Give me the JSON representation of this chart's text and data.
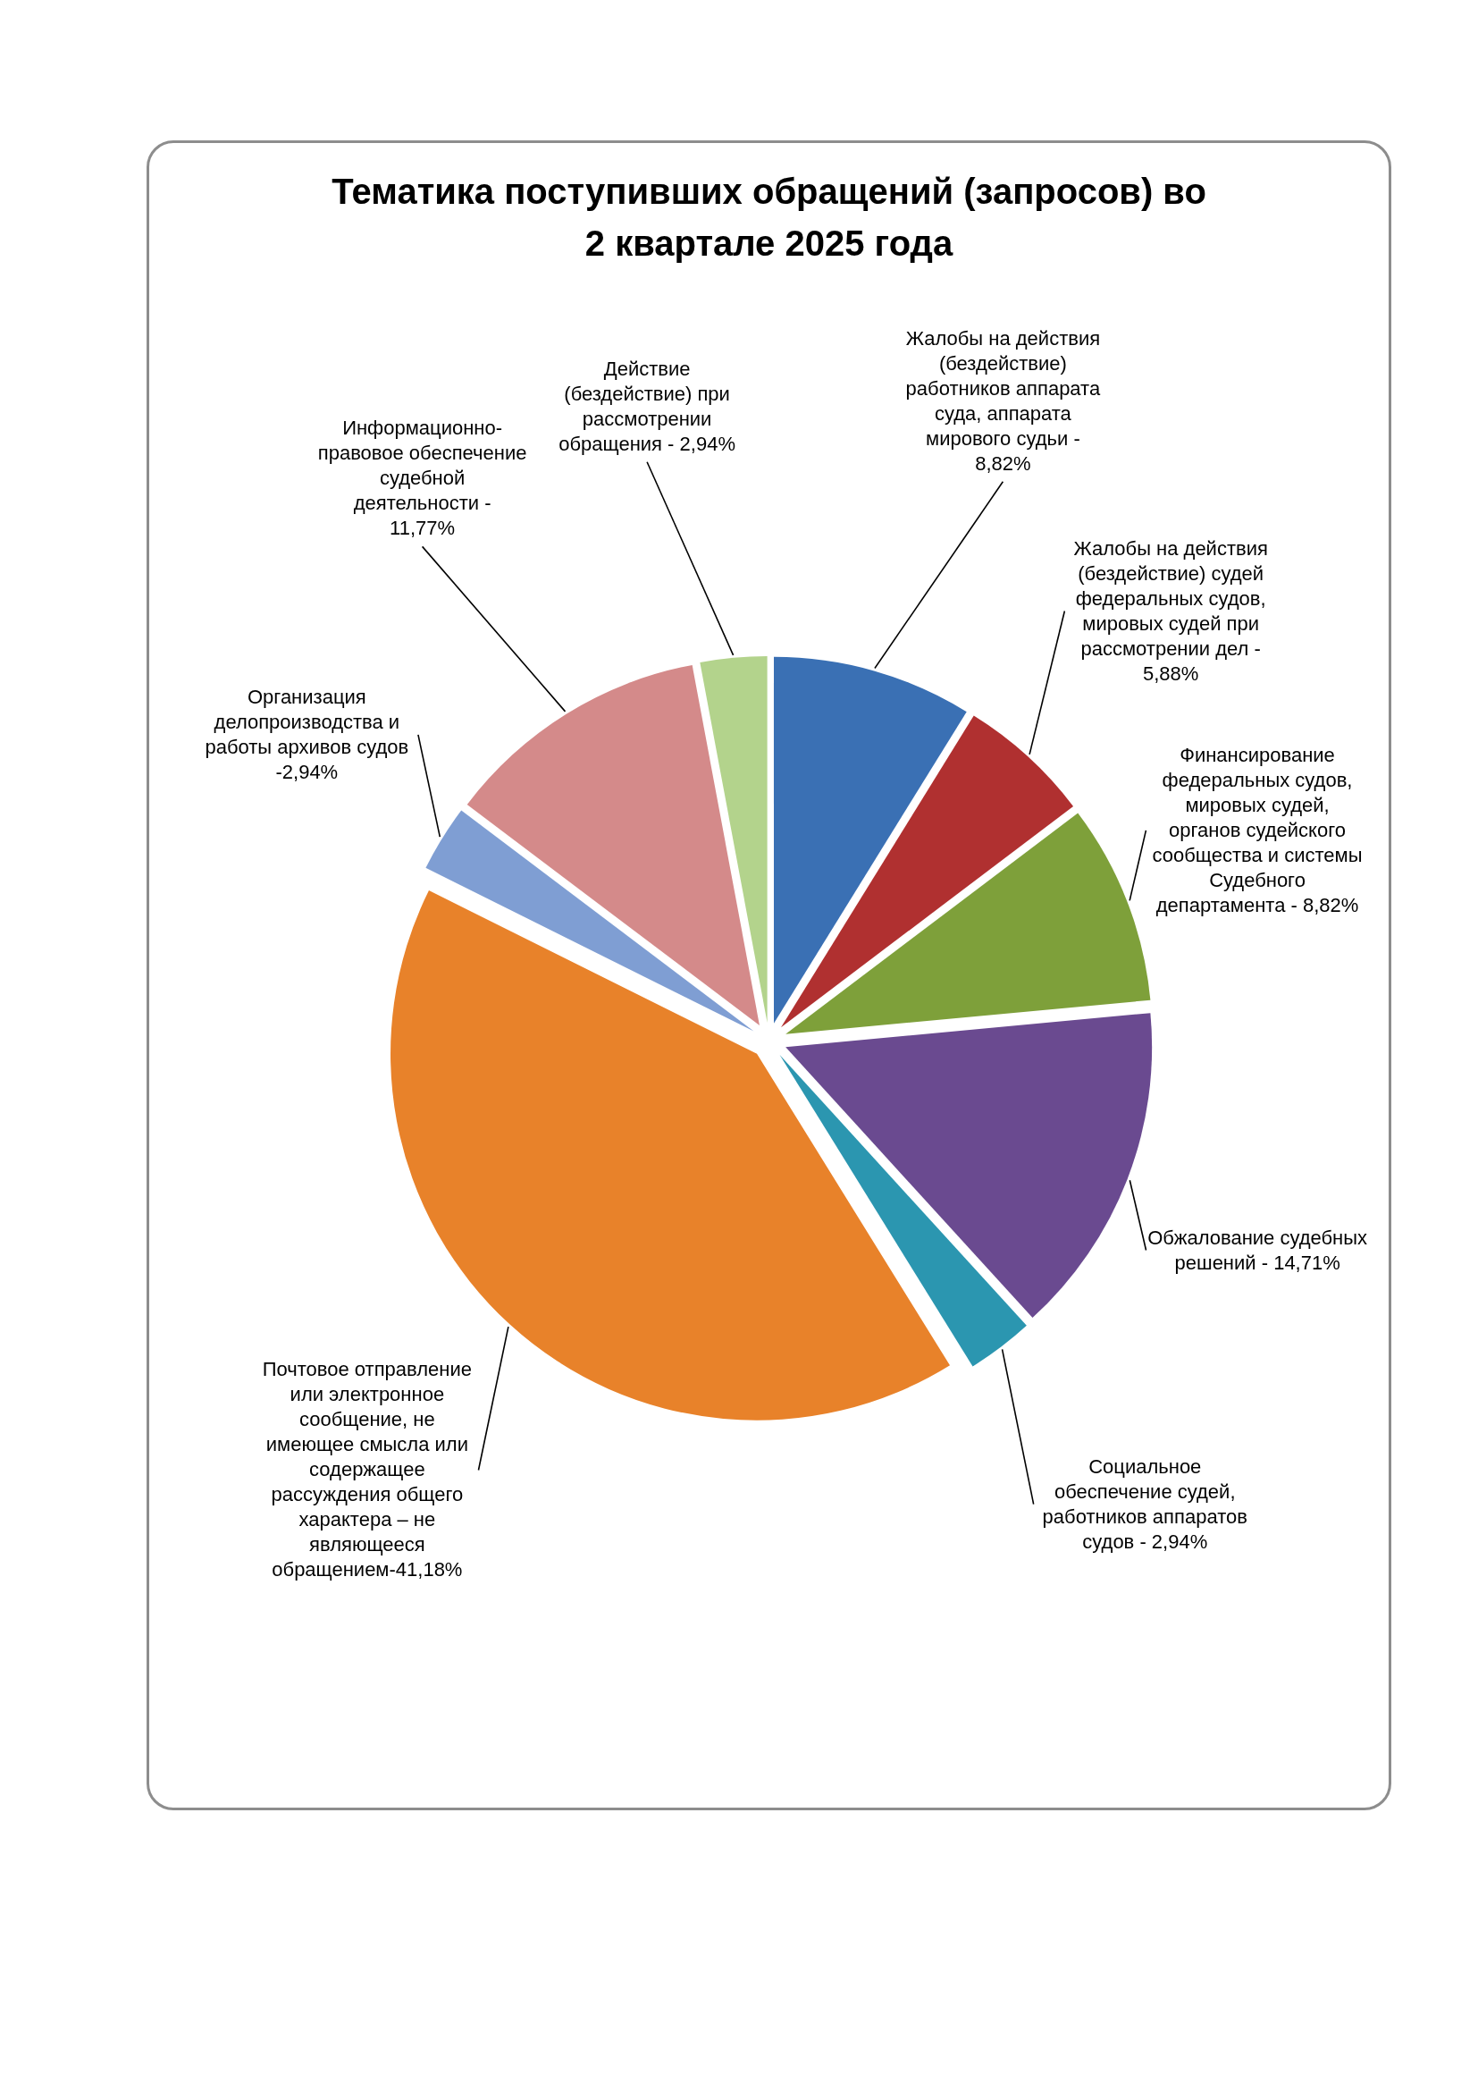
{
  "chart_data": {
    "type": "pie",
    "title": "Тематика поступивших обращений (запросов) во 2 квартале 2025 года",
    "categories": [
      "Жалобы на действия (бездействие) работников аппарата суда, аппарата мирового судьи - 8,82%",
      "Жалобы на действия (бездействие) судей федеральных судов, мировых судей при рассмотрении дел - 5,88%",
      "Финансирование федеральных судов, мировых судей, органов судейского сообщества и системы Судебного департамента - 8,82%",
      "Обжалование судебных решений - 14,71%",
      "Социальное обеспечение судей, работников аппаратов судов - 2,94%",
      "Почтовое отправление или электронное сообщение, не имеющее смысла или содержащее рассуждения общего характера – не являющееся обращением-41,18%",
      "Организация делопроизводства и работы архивов судов -2,94%",
      "Информационно-правовое обеспечение судебной деятельности - 11,77%",
      "Действие (бездействие) при рассмотрении обращения - 2,94%"
    ],
    "values": [
      8.82,
      5.88,
      8.82,
      14.71,
      2.94,
      41.18,
      2.94,
      11.77,
      2.94
    ],
    "colors": [
      "#3a70b4",
      "#b03030",
      "#7ea03a",
      "#6a4a90",
      "#2b96b0",
      "#e8822a",
      "#7f9ed3",
      "#d48a8a",
      "#b3d38c"
    ]
  }
}
